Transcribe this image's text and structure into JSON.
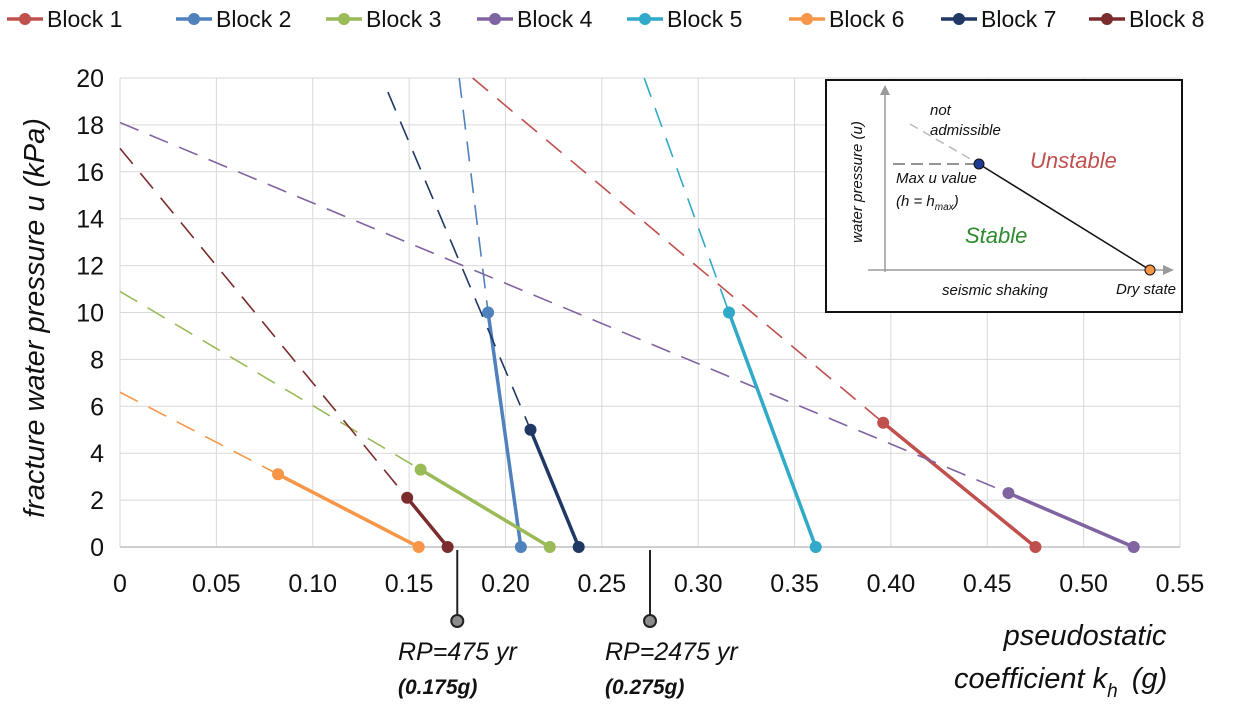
{
  "chart_data": {
    "type": "line",
    "xlabel_line1": "pseudostatic",
    "xlabel_line2": "coefficient k",
    "xlabel_sub": "h",
    "xlabel_unit": "(g)",
    "ylabel": "fracture water pressure u (kPa)",
    "xlim": [
      0,
      0.55
    ],
    "ylim": [
      0,
      20
    ],
    "x_ticks": [
      "0",
      "0.05",
      "0.10",
      "0.15",
      "0.20",
      "0.25",
      "0.30",
      "0.35",
      "0.40",
      "0.45",
      "0.50",
      "0.55"
    ],
    "y_ticks": [
      "0",
      "2",
      "4",
      "6",
      "8",
      "10",
      "12",
      "14",
      "16",
      "18",
      "20"
    ],
    "x_tick_values": [
      0,
      0.05,
      0.1,
      0.15,
      0.2,
      0.25,
      0.3,
      0.35,
      0.4,
      0.45,
      0.5,
      0.55
    ],
    "y_tick_values": [
      0,
      2,
      4,
      6,
      8,
      10,
      12,
      14,
      16,
      18,
      20
    ],
    "grid": true,
    "legend_position": "top",
    "series": [
      {
        "name": "Block 1",
        "color": "#c0504d",
        "solid": [
          [
            0.396,
            5.3
          ],
          [
            0.475,
            0
          ]
        ],
        "dashed": [
          [
            0.183,
            20
          ],
          [
            0.396,
            5.3
          ]
        ]
      },
      {
        "name": "Block 2",
        "color": "#4f81bd",
        "solid": [
          [
            0.191,
            10.0
          ],
          [
            0.208,
            0
          ]
        ],
        "dashed": [
          [
            0.176,
            20
          ],
          [
            0.191,
            10.0
          ]
        ]
      },
      {
        "name": "Block 3",
        "color": "#9bbb59",
        "solid": [
          [
            0.156,
            3.3
          ],
          [
            0.223,
            0
          ]
        ],
        "dashed": [
          [
            0,
            10.9
          ],
          [
            0.156,
            3.3
          ]
        ]
      },
      {
        "name": "Block 4",
        "color": "#8064a2",
        "solid": [
          [
            0.461,
            2.3
          ],
          [
            0.526,
            0
          ]
        ],
        "dashed": [
          [
            0,
            18.1
          ],
          [
            0.461,
            2.3
          ]
        ]
      },
      {
        "name": "Block 5",
        "color": "#31a9c9",
        "solid": [
          [
            0.316,
            10.0
          ],
          [
            0.361,
            0
          ]
        ],
        "dashed": [
          [
            0.272,
            20
          ],
          [
            0.316,
            10.0
          ]
        ]
      },
      {
        "name": "Block 6",
        "color": "#f79646",
        "solid": [
          [
            0.082,
            3.1
          ],
          [
            0.155,
            0
          ]
        ],
        "dashed": [
          [
            0,
            6.6
          ],
          [
            0.082,
            3.1
          ]
        ]
      },
      {
        "name": "Block 7",
        "color": "#1f3864",
        "solid": [
          [
            0.213,
            5.0
          ],
          [
            0.238,
            0
          ]
        ],
        "dashed": [
          [
            0.139,
            19.4
          ],
          [
            0.213,
            5.0
          ]
        ]
      },
      {
        "name": "Block 8",
        "color": "#7b2c2c",
        "solid": [
          [
            0.149,
            2.1
          ],
          [
            0.17,
            0
          ]
        ],
        "dashed": [
          [
            0,
            17.0
          ],
          [
            0.149,
            2.1
          ]
        ]
      }
    ],
    "annotations": [
      {
        "label": "RP=475 yr",
        "value": "(0.175g)",
        "x": 0.175
      },
      {
        "label": "RP=2475 yr",
        "value": "(0.275g)",
        "x": 0.275
      }
    ],
    "inset": {
      "ylabel": "water pressure (u)",
      "xlabel": "seismic shaking",
      "not_admissible_1": "not",
      "not_admissible_2": "admissible",
      "unstable": "Unstable",
      "stable": "Stable",
      "max_u_1": "Max u value",
      "max_u_2a": "(h = h",
      "max_u_sub": "max",
      "max_u_2b": ")",
      "dry_state": "Dry state",
      "colors": {
        "unstable": "#c0504d",
        "stable": "#2e8b2e",
        "max": "#2d2a8e",
        "dry": "#f79646",
        "dry_text": "#e39b2f"
      }
    }
  }
}
